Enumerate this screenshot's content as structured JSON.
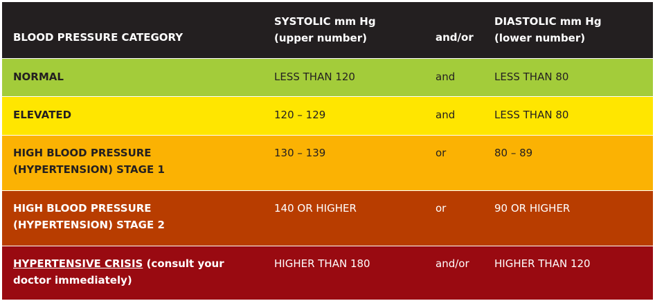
{
  "header": {
    "category": "BLOOD PRESSURE CATEGORY",
    "systolic_line1": "SYSTOLIC mm Hg",
    "systolic_line2": "(upper number)",
    "andor": "and/or",
    "diastolic_line1": "DIASTOLIC mm Hg",
    "diastolic_line2": "(lower number)"
  },
  "rows": [
    {
      "category": "NORMAL",
      "systolic": "LESS THAN 120",
      "andor": "and",
      "diastolic": "LESS THAN 80",
      "color": "#a3cc3a"
    },
    {
      "category": "ELEVATED",
      "systolic": "120 – 129",
      "andor": "and",
      "diastolic": "LESS THAN 80",
      "color": "#ffe600"
    },
    {
      "category_line1": "HIGH BLOOD PRESSURE",
      "category_line2": "(HYPERTENSION) STAGE 1",
      "systolic": "130 – 139",
      "andor": "or",
      "diastolic": "80 – 89",
      "color": "#fbb203"
    },
    {
      "category_line1": "HIGH BLOOD PRESSURE",
      "category_line2": "(HYPERTENSION) STAGE 2",
      "systolic": "140 OR HIGHER",
      "andor": "or",
      "diastolic": "90 OR HIGHER",
      "color": "#b83d00"
    },
    {
      "category_link": "HYPERTENSIVE CRISIS",
      "category_rest_line1": " (consult your",
      "category_rest_line2": "doctor immediately)",
      "systolic": "HIGHER THAN 180",
      "andor": "and/or",
      "diastolic": "HIGHER THAN 120",
      "color": "#990a11"
    }
  ]
}
